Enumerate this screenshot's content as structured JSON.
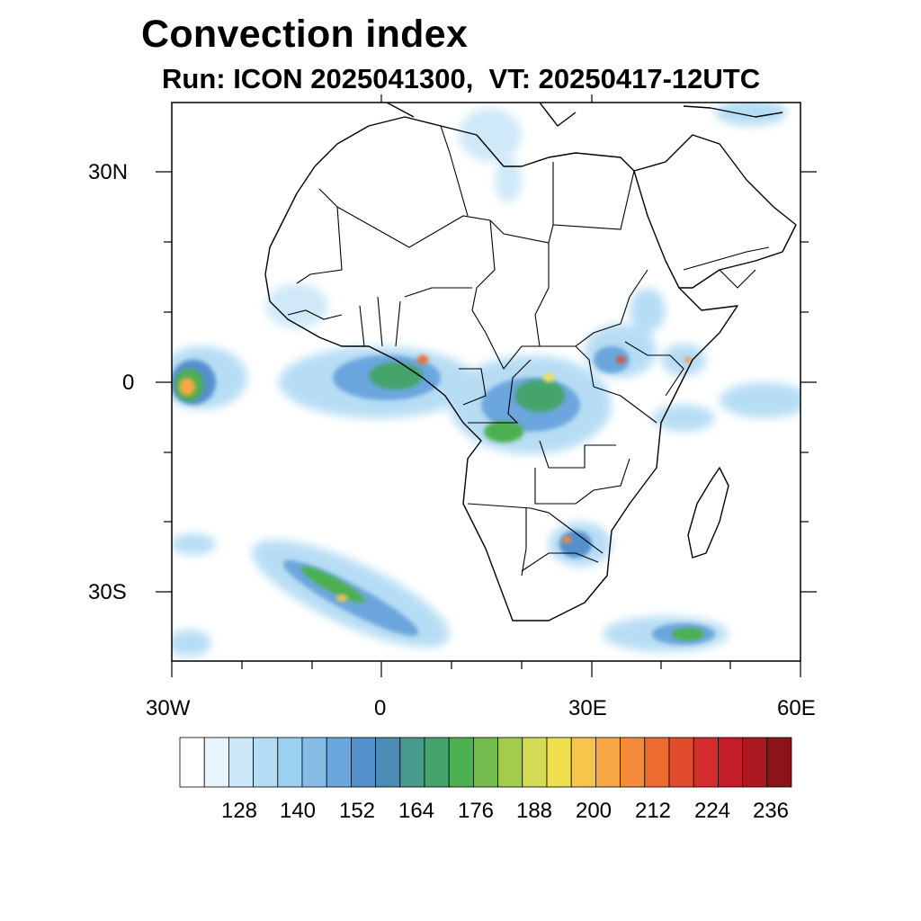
{
  "title": "Convection index",
  "subtitle": "Run: ICON 2025041300,  VT: 20250417-12UTC",
  "axes": {
    "lat_labels": [
      "30N",
      "0",
      "30S"
    ],
    "lon_labels": [
      "30W",
      "0",
      "30E",
      "60E"
    ]
  },
  "colorbar": {
    "labels": [
      "128",
      "140",
      "152",
      "164",
      "176",
      "188",
      "200",
      "212",
      "224",
      "236"
    ],
    "colors": [
      "#ffffff",
      "#e8f4fc",
      "#cde8f8",
      "#b4dcf4",
      "#9cd0f0",
      "#84bce6",
      "#6ca6de",
      "#5490cc",
      "#4c8cb4",
      "#489a8c",
      "#44a46c",
      "#4cb050",
      "#74bc4c",
      "#a4cc4c",
      "#d4dc54",
      "#f0e050",
      "#f8c44c",
      "#f8a844",
      "#f48c3c",
      "#ec6c30",
      "#e04c2c",
      "#d42c2c",
      "#c41c28",
      "#ac1820",
      "#8c1418"
    ]
  },
  "chart_data": {
    "type": "heatmap",
    "title": "Convection index",
    "subtitle": "Run: ICON 2025041300,  VT: 20250417-12UTC",
    "x_range_deg": [
      -30,
      60
    ],
    "y_range_deg": [
      -40,
      40
    ],
    "x_ticks": [
      "30W",
      "0",
      "30E",
      "60E"
    ],
    "y_ticks": [
      "30N",
      "0",
      "30S"
    ],
    "colorbar_labels": [
      128,
      140,
      152,
      164,
      176,
      188,
      200,
      212,
      224,
      236
    ]
  }
}
